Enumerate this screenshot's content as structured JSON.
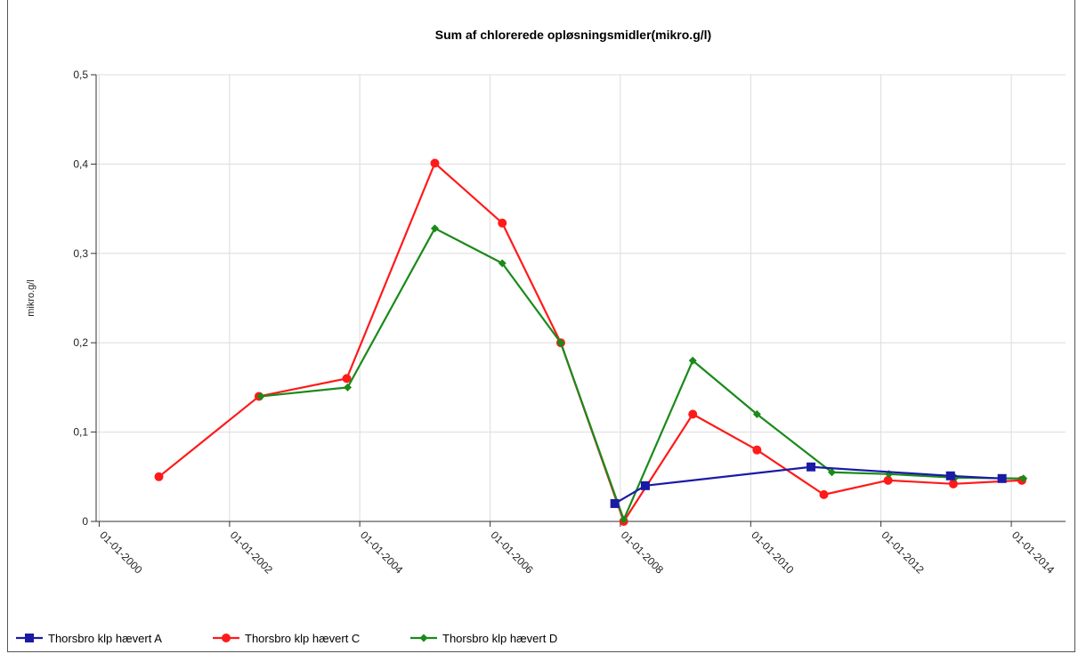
{
  "chart_data": {
    "type": "line",
    "title": "Sum af chlorerede opløsningsmidler(mikro.g/l)",
    "xlabel": "",
    "ylabel": "mikro.g/l",
    "xlim": [
      "1999-12-15",
      "2014-11-01"
    ],
    "ylim": [
      0,
      0.5
    ],
    "x_ticks": [
      "01-01-2000",
      "01-01-2002",
      "01-01-2004",
      "01-01-2006",
      "01-01-2008",
      "01-01-2010",
      "01-01-2012",
      "01-01-2014"
    ],
    "y_ticks": [
      {
        "value": 0,
        "label": "0"
      },
      {
        "value": 0.1,
        "label": "0,1"
      },
      {
        "value": 0.2,
        "label": "0,2"
      },
      {
        "value": 0.3,
        "label": "0,3"
      },
      {
        "value": 0.4,
        "label": "0,4"
      },
      {
        "value": 0.5,
        "label": "0,5"
      }
    ],
    "grid": true,
    "legend_position": "bottom-left",
    "series": [
      {
        "name": "Thorsbro klp hævert A",
        "color": "#1a1aa6",
        "marker": "square",
        "points": [
          {
            "x": "2007-12-01",
            "y": 0.02
          },
          {
            "x": "2008-05-20",
            "y": 0.04
          },
          {
            "x": "2010-12-05",
            "y": 0.061
          },
          {
            "x": "2013-01-25",
            "y": 0.051
          },
          {
            "x": "2013-11-10",
            "y": 0.048
          }
        ]
      },
      {
        "name": "Thorsbro klp hævert C",
        "color": "#ff1a1a",
        "marker": "circle",
        "points": [
          {
            "x": "2000-12-01",
            "y": 0.05
          },
          {
            "x": "2002-06-15",
            "y": 0.14
          },
          {
            "x": "2003-10-20",
            "y": 0.16
          },
          {
            "x": "2005-02-25",
            "y": 0.401
          },
          {
            "x": "2006-03-10",
            "y": 0.334
          },
          {
            "x": "2007-02-01",
            "y": 0.2
          },
          {
            "x": "2008-01-20",
            "y": 0.0
          },
          {
            "x": "2009-02-10",
            "y": 0.12
          },
          {
            "x": "2010-02-05",
            "y": 0.08
          },
          {
            "x": "2011-02-15",
            "y": 0.03
          },
          {
            "x": "2012-02-10",
            "y": 0.046
          },
          {
            "x": "2013-02-10",
            "y": 0.042
          },
          {
            "x": "2014-03-01",
            "y": 0.046
          }
        ]
      },
      {
        "name": "Thorsbro klp hævert D",
        "color": "#1a8a1a",
        "marker": "diamond",
        "points": [
          {
            "x": "2002-06-25",
            "y": 0.14
          },
          {
            "x": "2003-10-25",
            "y": 0.15
          },
          {
            "x": "2005-02-25",
            "y": 0.328
          },
          {
            "x": "2006-03-10",
            "y": 0.289
          },
          {
            "x": "2007-02-01",
            "y": 0.2
          },
          {
            "x": "2008-01-20",
            "y": 0.002
          },
          {
            "x": "2009-02-10",
            "y": 0.18
          },
          {
            "x": "2010-02-05",
            "y": 0.12
          },
          {
            "x": "2011-04-01",
            "y": 0.055
          },
          {
            "x": "2012-02-15",
            "y": 0.053
          },
          {
            "x": "2013-02-20",
            "y": 0.049
          },
          {
            "x": "2014-03-10",
            "y": 0.048
          }
        ]
      }
    ]
  }
}
